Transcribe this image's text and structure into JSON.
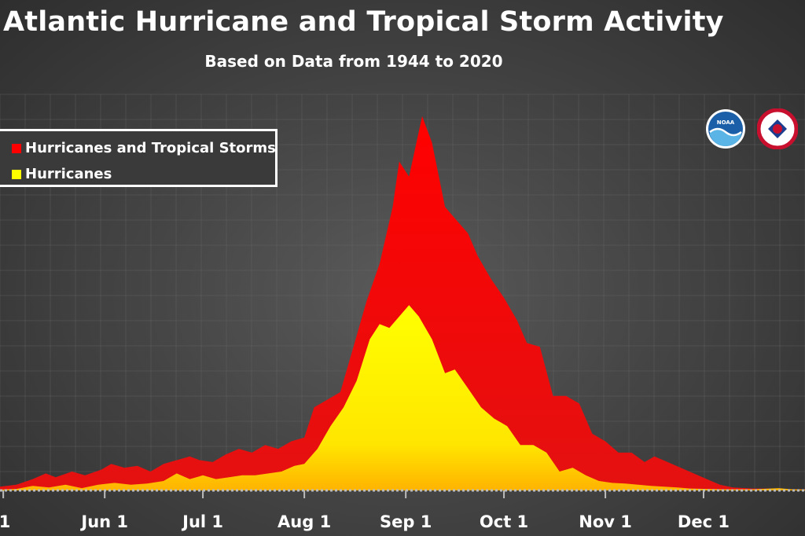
{
  "chart_data": {
    "type": "area",
    "title": "Atlantic Hurricane and Tropical Storm Activity",
    "subtitle": "Based on Data from 1944 to 2020",
    "xlabel": "",
    "ylabel": "",
    "grid": true,
    "legend_position": "top-left",
    "x_axis": {
      "unit": "day of year",
      "range": [
        120,
        366
      ],
      "ticks": [
        {
          "day": 121,
          "label": "1"
        },
        {
          "day": 152,
          "label": "Jun 1"
        },
        {
          "day": 182,
          "label": "Jul 1"
        },
        {
          "day": 213,
          "label": "Aug 1"
        },
        {
          "day": 244,
          "label": "Sep 1"
        },
        {
          "day": 274,
          "label": "Oct 1"
        },
        {
          "day": 305,
          "label": "Nov 1"
        },
        {
          "day": 335,
          "label": "Dec 1"
        }
      ]
    },
    "y_range": [
      0,
      100
    ],
    "series": [
      {
        "name": "Hurricanes and Tropical Storms",
        "color": "#ff0000",
        "points": [
          [
            120,
            1
          ],
          [
            125,
            1.5
          ],
          [
            130,
            3
          ],
          [
            134,
            4.5
          ],
          [
            137,
            3.5
          ],
          [
            142,
            5
          ],
          [
            146,
            4
          ],
          [
            151,
            5.5
          ],
          [
            154,
            7
          ],
          [
            158,
            6
          ],
          [
            162,
            6.5
          ],
          [
            166,
            5
          ],
          [
            170,
            7
          ],
          [
            174,
            8
          ],
          [
            178,
            9
          ],
          [
            181,
            8
          ],
          [
            185,
            7.5
          ],
          [
            189,
            9.5
          ],
          [
            193,
            11
          ],
          [
            197,
            10
          ],
          [
            201,
            12
          ],
          [
            205,
            11
          ],
          [
            209,
            13
          ],
          [
            213,
            14
          ],
          [
            216,
            22
          ],
          [
            220,
            24
          ],
          [
            224,
            26
          ],
          [
            228,
            38
          ],
          [
            232,
            50
          ],
          [
            236,
            60
          ],
          [
            240,
            75
          ],
          [
            242,
            87
          ],
          [
            245,
            83
          ],
          [
            249,
            99
          ],
          [
            252,
            92
          ],
          [
            256,
            75
          ],
          [
            259,
            72
          ],
          [
            263,
            68
          ],
          [
            266,
            62
          ],
          [
            270,
            56
          ],
          [
            274,
            51
          ],
          [
            278,
            45
          ],
          [
            281,
            39
          ],
          [
            285,
            38
          ],
          [
            289,
            25
          ],
          [
            293,
            25
          ],
          [
            297,
            23
          ],
          [
            301,
            15
          ],
          [
            305,
            13
          ],
          [
            309,
            10
          ],
          [
            313,
            10
          ],
          [
            317,
            7.5
          ],
          [
            320,
            9
          ],
          [
            324,
            7.5
          ],
          [
            328,
            6
          ],
          [
            332,
            4.5
          ],
          [
            336,
            3
          ],
          [
            340,
            1.5
          ],
          [
            344,
            0.8
          ],
          [
            350,
            0.5
          ],
          [
            357,
            0.5
          ],
          [
            362,
            0.3
          ],
          [
            366,
            0.3
          ]
        ]
      },
      {
        "name": "Hurricanes",
        "color": "#ffff00",
        "points": [
          [
            120,
            0.2
          ],
          [
            125,
            0.4
          ],
          [
            130,
            1.2
          ],
          [
            135,
            0.8
          ],
          [
            140,
            1.5
          ],
          [
            145,
            0.6
          ],
          [
            150,
            1.5
          ],
          [
            155,
            2
          ],
          [
            160,
            1.5
          ],
          [
            165,
            1.8
          ],
          [
            170,
            2.5
          ],
          [
            174,
            4.5
          ],
          [
            178,
            3
          ],
          [
            182,
            4
          ],
          [
            186,
            3
          ],
          [
            190,
            3.5
          ],
          [
            194,
            4
          ],
          [
            198,
            4
          ],
          [
            202,
            4.5
          ],
          [
            206,
            5
          ],
          [
            210,
            6.5
          ],
          [
            213,
            7
          ],
          [
            217,
            11
          ],
          [
            221,
            17
          ],
          [
            225,
            22
          ],
          [
            229,
            29
          ],
          [
            233,
            40
          ],
          [
            236,
            44
          ],
          [
            239,
            43
          ],
          [
            242,
            46
          ],
          [
            245,
            49
          ],
          [
            248,
            46
          ],
          [
            252,
            40
          ],
          [
            256,
            31
          ],
          [
            259,
            32
          ],
          [
            263,
            27
          ],
          [
            267,
            22
          ],
          [
            271,
            19
          ],
          [
            275,
            17
          ],
          [
            279,
            12
          ],
          [
            283,
            12
          ],
          [
            287,
            10
          ],
          [
            291,
            5
          ],
          [
            295,
            6
          ],
          [
            299,
            4
          ],
          [
            303,
            2.5
          ],
          [
            307,
            2
          ],
          [
            311,
            1.8
          ],
          [
            315,
            1.5
          ],
          [
            319,
            1.2
          ],
          [
            323,
            1
          ],
          [
            327,
            0.8
          ],
          [
            331,
            0.5
          ],
          [
            336,
            0.4
          ],
          [
            342,
            0.3
          ],
          [
            350,
            0.3
          ],
          [
            358,
            0.6
          ],
          [
            362,
            0.3
          ],
          [
            366,
            0.2
          ]
        ]
      }
    ]
  },
  "logos": {
    "noaa": {
      "icon": "noaa-logo",
      "text": "NOAA"
    },
    "nws": {
      "icon": "nws-logo"
    }
  }
}
